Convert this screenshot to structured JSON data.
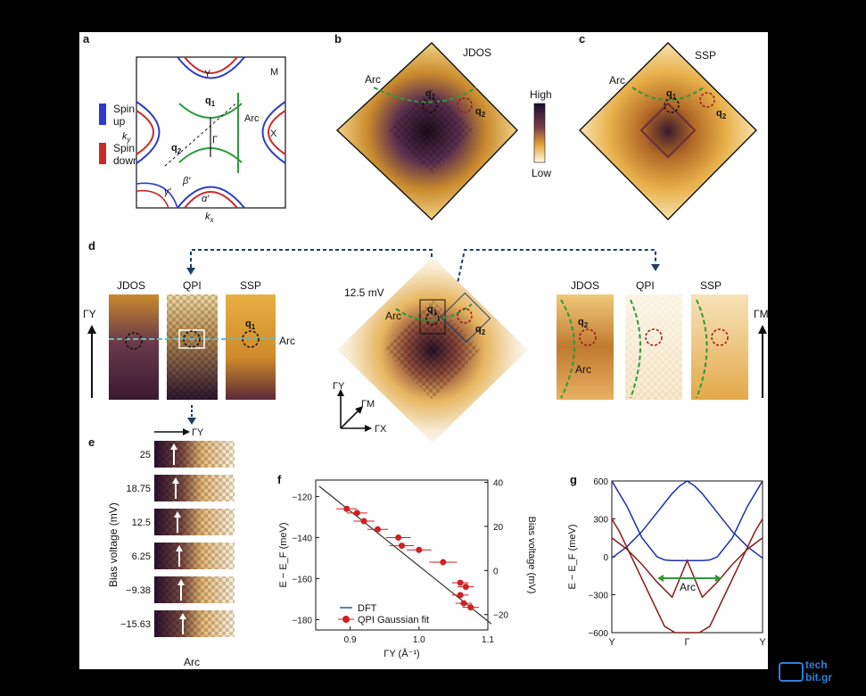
{
  "panels": {
    "a": {
      "letter": "a",
      "legend_up": "Spin",
      "legend_up2": "up",
      "legend_down": "Spin",
      "legend_down2": "down",
      "ky": "k",
      "ky_sub": "y",
      "kx": "k",
      "kx_sub": "x",
      "Y": "Y",
      "M": "M",
      "X": "X",
      "Gamma": "Γ",
      "Arc": "Arc",
      "q1": "q",
      "q1_sub": "1",
      "q2": "q",
      "q2_sub": "2",
      "gamma_p": "γ′",
      "beta_p": "β′",
      "alpha_p": "α′"
    },
    "b": {
      "letter": "b",
      "title": "JDOS",
      "arc": "Arc",
      "q1": "q",
      "q1_sub": "1",
      "q2": "q",
      "q2_sub": "2",
      "high": "High",
      "low": "Low"
    },
    "c": {
      "letter": "c",
      "title": "SSP",
      "arc": "Arc",
      "q1": "q",
      "q1_sub": "1",
      "q2": "q",
      "q2_sub": "2"
    },
    "d": {
      "letter": "d",
      "left_titles": [
        "JDOS",
        "QPI",
        "SSP"
      ],
      "right_titles": [
        "JDOS",
        "QPI",
        "SSP"
      ],
      "gy": "ΓY",
      "gm": "ΓM",
      "arc_left": "Arc",
      "arc_center": "Arc",
      "arc_right": "Arc",
      "bias": "12.5 mV",
      "q1": "q",
      "q1_sub": "1",
      "q2": "q",
      "q2_sub": "2",
      "axis_gy": "ΓY",
      "axis_gm": "ΓM",
      "axis_gx": "ΓX"
    },
    "e": {
      "letter": "e",
      "top_axis": "ΓY",
      "ylabel": "Bias voltage (mV)",
      "xlabel": "Arc",
      "rows": [
        "25",
        "18.75",
        "12.5",
        "6.25",
        "−9.38",
        "−15.63"
      ]
    },
    "f": {
      "letter": "f",
      "legend_dft": "DFT",
      "legend_qpi": "QPI Gaussian fit"
    },
    "g": {
      "letter": "g",
      "arc": "Arc"
    }
  },
  "chart_data": [
    {
      "type": "scatter",
      "panel": "f",
      "xlabel": "ΓY (Å⁻¹)",
      "ylabel": "E − E_F (meV)",
      "ylabel_right": "Bias voltage (mV)",
      "xlim": [
        0.85,
        1.1
      ],
      "ylim": [
        -185,
        -112
      ],
      "y2lim": [
        -27,
        41
      ],
      "xticks": [
        "0.9",
        "1.0",
        "1.1"
      ],
      "yticks": [
        "−120",
        "−140",
        "−160",
        "−180"
      ],
      "y2ticks": [
        "40",
        "20",
        "0",
        "−20"
      ],
      "series": [
        {
          "name": "DFT",
          "line": [
            [
              0.855,
              -115
            ],
            [
              1.105,
              -182
            ]
          ],
          "color": "#333333"
        },
        {
          "name": "QPI Gaussian fit",
          "color": "#d11f1f",
          "points": [
            [
              0.895,
              -126
            ],
            [
              0.91,
              -128
            ],
            [
              0.92,
              -132
            ],
            [
              0.94,
              -136
            ],
            [
              0.97,
              -140
            ],
            [
              0.975,
              -144
            ],
            [
              1.0,
              -146
            ],
            [
              1.035,
              -152
            ],
            [
              1.06,
              -162
            ],
            [
              1.068,
              -164
            ],
            [
              1.06,
              -168
            ],
            [
              1.065,
              -172
            ],
            [
              1.075,
              -174
            ]
          ],
          "xerr": [
            0.015,
            0.015,
            0.015,
            0.015,
            0.018,
            0.018,
            0.018,
            0.02,
            0.012,
            0.012,
            0.012,
            0.012,
            0.012
          ]
        }
      ]
    },
    {
      "type": "line",
      "panel": "g",
      "ylabel": "E − E_F (meV)",
      "xticks": [
        "Y",
        "Γ",
        "Y"
      ],
      "ylim": [
        -600,
        600
      ],
      "yticks": [
        "600",
        "300",
        "0",
        "−300",
        "−600"
      ],
      "annotation": "Arc",
      "series": [
        {
          "name": "",
          "color": "#1d2fa8",
          "x": [
            0,
            0.1,
            0.2,
            0.3,
            0.4,
            0.45,
            0.5,
            0.55,
            0.6,
            0.7,
            0.8,
            0.9,
            1.0
          ],
          "values": [
            -10,
            80,
            200,
            350,
            500,
            560,
            600,
            560,
            500,
            350,
            200,
            80,
            -10
          ]
        },
        {
          "name": "",
          "color": "#1d2fa8",
          "x": [
            0,
            0.1,
            0.2,
            0.3,
            0.35,
            0.4,
            0.5,
            0.6,
            0.65,
            0.7,
            0.8,
            0.9,
            1.0
          ],
          "values": [
            600,
            400,
            150,
            0,
            -25,
            -30,
            -30,
            -30,
            -25,
            0,
            150,
            400,
            600
          ]
        },
        {
          "name": "",
          "color": "#8b1c1c",
          "x": [
            0,
            0.1,
            0.2,
            0.3,
            0.4,
            0.5,
            0.6,
            0.7,
            0.8,
            0.9,
            1.0
          ],
          "values": [
            150,
            60,
            -60,
            -200,
            -320,
            -30,
            -320,
            -200,
            -60,
            60,
            150
          ]
        },
        {
          "name": "",
          "color": "#8b1c1c",
          "x": [
            0,
            0.05,
            0.15,
            0.25,
            0.35,
            0.42,
            0.5,
            0.58,
            0.65,
            0.75,
            0.85,
            0.95,
            1.0
          ],
          "values": [
            300,
            200,
            -50,
            -300,
            -550,
            -600,
            -600,
            -600,
            -550,
            -300,
            -50,
            200,
            300
          ]
        }
      ]
    }
  ],
  "logo": {
    "line1": "tech",
    "line2": "bit.gr"
  }
}
